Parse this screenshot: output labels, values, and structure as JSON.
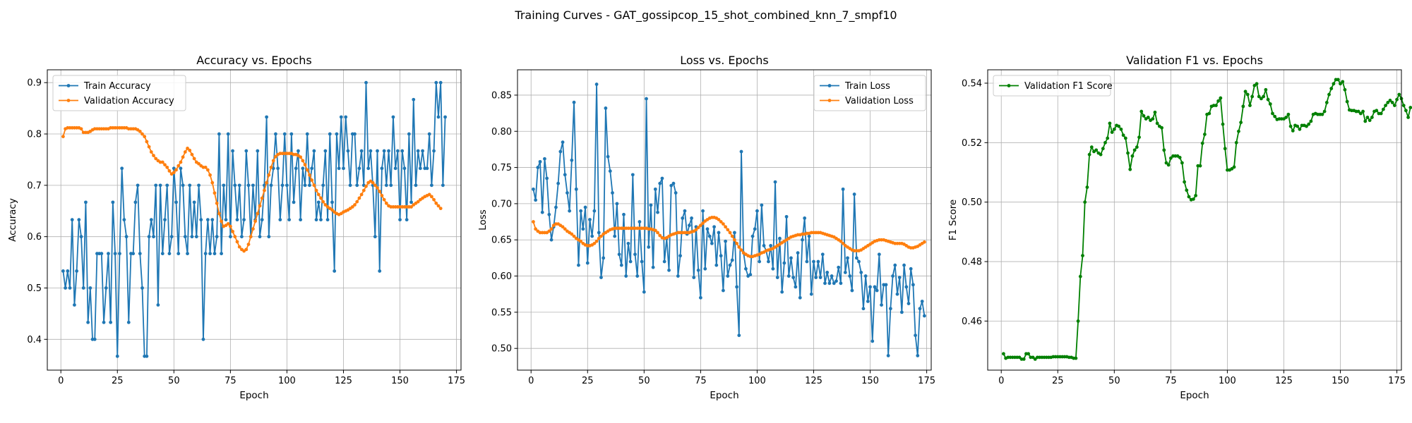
{
  "figure": {
    "suptitle": "Training Curves - GAT_gossipcop_15_shot_combined_knn_7_smpf10"
  },
  "colors": {
    "train": "#1f77b4",
    "validation": "#ff7f0e",
    "f1": "#008000",
    "grid": "#b0b0b0"
  },
  "chart_data": [
    {
      "type": "line",
      "title": "Accuracy vs. Epochs",
      "xlabel": "Epoch",
      "ylabel": "Accuracy",
      "xlim": [
        -6,
        177
      ],
      "ylim": [
        0.34,
        0.925
      ],
      "xticks": [
        0,
        25,
        50,
        75,
        100,
        125,
        150,
        175
      ],
      "yticks": [
        0.4,
        0.5,
        0.6,
        0.7,
        0.8,
        0.9
      ],
      "ytick_labels": [
        "0.4",
        "0.5",
        "0.6",
        "0.7",
        "0.8",
        "0.9"
      ],
      "grid": true,
      "legend_position": "upper-left",
      "series": [
        {
          "name": "Train Accuracy",
          "color": "#1f77b4",
          "x_start": 1,
          "values": [
            0.533,
            0.5,
            0.533,
            0.5,
            0.633,
            0.467,
            0.533,
            0.633,
            0.6,
            0.5,
            0.667,
            0.433,
            0.5,
            0.4,
            0.4,
            0.567,
            0.567,
            0.567,
            0.433,
            0.5,
            0.567,
            0.433,
            0.667,
            0.567,
            0.367,
            0.567,
            0.733,
            0.633,
            0.6,
            0.433,
            0.567,
            0.567,
            0.667,
            0.7,
            0.567,
            0.5,
            0.367,
            0.367,
            0.6,
            0.633,
            0.6,
            0.7,
            0.467,
            0.7,
            0.567,
            0.633,
            0.7,
            0.567,
            0.6,
            0.733,
            0.667,
            0.567,
            0.733,
            0.7,
            0.6,
            0.567,
            0.7,
            0.6,
            0.667,
            0.6,
            0.7,
            0.633,
            0.4,
            0.567,
            0.633,
            0.567,
            0.633,
            0.567,
            0.6,
            0.8,
            0.567,
            0.7,
            0.633,
            0.8,
            0.6,
            0.767,
            0.7,
            0.633,
            0.7,
            0.6,
            0.633,
            0.767,
            0.7,
            0.6,
            0.7,
            0.633,
            0.767,
            0.6,
            0.633,
            0.7,
            0.833,
            0.6,
            0.7,
            0.733,
            0.8,
            0.733,
            0.633,
            0.7,
            0.8,
            0.7,
            0.633,
            0.8,
            0.667,
            0.733,
            0.767,
            0.633,
            0.733,
            0.7,
            0.8,
            0.7,
            0.733,
            0.767,
            0.633,
            0.667,
            0.633,
            0.7,
            0.767,
            0.633,
            0.8,
            0.667,
            0.533,
            0.8,
            0.733,
            0.833,
            0.733,
            0.833,
            0.767,
            0.7,
            0.8,
            0.8,
            0.7,
            0.733,
            0.767,
            0.7,
            0.9,
            0.733,
            0.767,
            0.7,
            0.6,
            0.767,
            0.533,
            0.733,
            0.767,
            0.7,
            0.767,
            0.7,
            0.833,
            0.733,
            0.767,
            0.633,
            0.767,
            0.733,
            0.633,
            0.8,
            0.667,
            0.867,
            0.7,
            0.767,
            0.733,
            0.767,
            0.733,
            0.733,
            0.8,
            0.7,
            0.767,
            0.9,
            0.833,
            0.9,
            0.7,
            0.833
          ]
        },
        {
          "name": "Validation Accuracy",
          "color": "#ff7f0e",
          "x_start": 1,
          "values": [
            0.795,
            0.81,
            0.812,
            0.812,
            0.812,
            0.812,
            0.812,
            0.812,
            0.81,
            0.803,
            0.803,
            0.803,
            0.805,
            0.808,
            0.81,
            0.81,
            0.81,
            0.81,
            0.81,
            0.81,
            0.81,
            0.812,
            0.812,
            0.812,
            0.812,
            0.812,
            0.812,
            0.812,
            0.812,
            0.81,
            0.81,
            0.81,
            0.81,
            0.808,
            0.805,
            0.8,
            0.795,
            0.785,
            0.775,
            0.765,
            0.758,
            0.752,
            0.748,
            0.745,
            0.745,
            0.74,
            0.735,
            0.728,
            0.722,
            0.725,
            0.73,
            0.738,
            0.745,
            0.755,
            0.765,
            0.772,
            0.768,
            0.76,
            0.752,
            0.745,
            0.742,
            0.738,
            0.735,
            0.735,
            0.73,
            0.72,
            0.705,
            0.685,
            0.665,
            0.645,
            0.63,
            0.62,
            0.622,
            0.625,
            0.62,
            0.61,
            0.6,
            0.59,
            0.58,
            0.575,
            0.572,
            0.575,
            0.585,
            0.6,
            0.615,
            0.63,
            0.645,
            0.66,
            0.675,
            0.69,
            0.705,
            0.72,
            0.735,
            0.748,
            0.756,
            0.76,
            0.762,
            0.762,
            0.762,
            0.762,
            0.762,
            0.762,
            0.76,
            0.76,
            0.758,
            0.755,
            0.748,
            0.74,
            0.73,
            0.72,
            0.71,
            0.7,
            0.69,
            0.682,
            0.675,
            0.668,
            0.662,
            0.658,
            0.655,
            0.652,
            0.648,
            0.645,
            0.643,
            0.645,
            0.648,
            0.65,
            0.652,
            0.655,
            0.658,
            0.662,
            0.668,
            0.675,
            0.682,
            0.69,
            0.698,
            0.705,
            0.708,
            0.705,
            0.7,
            0.695,
            0.688,
            0.68,
            0.672,
            0.665,
            0.66,
            0.658,
            0.658,
            0.658,
            0.658,
            0.658,
            0.658,
            0.658,
            0.658,
            0.658,
            0.658,
            0.662,
            0.665,
            0.668,
            0.672,
            0.675,
            0.678,
            0.68,
            0.682,
            0.678,
            0.672,
            0.665,
            0.66,
            0.655
          ]
        }
      ]
    },
    {
      "type": "line",
      "title": "Loss vs. Epochs",
      "xlabel": "Epoch",
      "ylabel": "Loss",
      "xlim": [
        -6,
        177
      ],
      "ylim": [
        0.47,
        0.885
      ],
      "xticks": [
        0,
        25,
        50,
        75,
        100,
        125,
        150,
        175
      ],
      "yticks": [
        0.5,
        0.55,
        0.6,
        0.65,
        0.7,
        0.75,
        0.8,
        0.85
      ],
      "ytick_labels": [
        "0.50",
        "0.55",
        "0.60",
        "0.65",
        "0.70",
        "0.75",
        "0.80",
        "0.85"
      ],
      "grid": true,
      "legend_position": "upper-right",
      "series": [
        {
          "name": "Train Loss",
          "color": "#1f77b4",
          "x_start": 1,
          "values": [
            0.72,
            0.705,
            0.75,
            0.758,
            0.688,
            0.762,
            0.735,
            0.685,
            0.65,
            0.668,
            0.695,
            0.728,
            0.772,
            0.785,
            0.74,
            0.715,
            0.69,
            0.76,
            0.84,
            0.72,
            0.615,
            0.69,
            0.665,
            0.695,
            0.618,
            0.678,
            0.655,
            0.69,
            0.865,
            0.66,
            0.598,
            0.625,
            0.832,
            0.765,
            0.745,
            0.715,
            0.655,
            0.7,
            0.63,
            0.615,
            0.685,
            0.6,
            0.645,
            0.62,
            0.74,
            0.63,
            0.6,
            0.675,
            0.62,
            0.578,
            0.845,
            0.64,
            0.698,
            0.612,
            0.72,
            0.688,
            0.728,
            0.735,
            0.62,
            0.652,
            0.608,
            0.725,
            0.728,
            0.715,
            0.6,
            0.628,
            0.68,
            0.69,
            0.658,
            0.67,
            0.68,
            0.598,
            0.668,
            0.608,
            0.57,
            0.69,
            0.61,
            0.665,
            0.655,
            0.645,
            0.668,
            0.615,
            0.66,
            0.628,
            0.58,
            0.648,
            0.6,
            0.615,
            0.622,
            0.66,
            0.585,
            0.518,
            0.772,
            0.632,
            0.61,
            0.6,
            0.602,
            0.655,
            0.665,
            0.69,
            0.62,
            0.698,
            0.642,
            0.635,
            0.62,
            0.642,
            0.61,
            0.73,
            0.598,
            0.652,
            0.578,
            0.618,
            0.682,
            0.6,
            0.625,
            0.598,
            0.585,
            0.632,
            0.57,
            0.65,
            0.68,
            0.62,
            0.655,
            0.575,
            0.62,
            0.598,
            0.62,
            0.598,
            0.63,
            0.59,
            0.605,
            0.59,
            0.6,
            0.59,
            0.593,
            0.612,
            0.59,
            0.72,
            0.605,
            0.625,
            0.6,
            0.58,
            0.713,
            0.625,
            0.62,
            0.605,
            0.555,
            0.6,
            0.565,
            0.585,
            0.51,
            0.585,
            0.58,
            0.63,
            0.56,
            0.588,
            0.588,
            0.49,
            0.555,
            0.6,
            0.615,
            0.575,
            0.598,
            0.55,
            0.615,
            0.585,
            0.562,
            0.61,
            0.588,
            0.518,
            0.49,
            0.555,
            0.565,
            0.545
          ]
        },
        {
          "name": "Validation Loss",
          "color": "#ff7f0e",
          "x_start": 1,
          "values": [
            0.675,
            0.665,
            0.662,
            0.66,
            0.66,
            0.66,
            0.66,
            0.662,
            0.665,
            0.67,
            0.672,
            0.672,
            0.67,
            0.668,
            0.665,
            0.662,
            0.66,
            0.658,
            0.655,
            0.652,
            0.65,
            0.648,
            0.645,
            0.643,
            0.642,
            0.642,
            0.643,
            0.645,
            0.648,
            0.652,
            0.655,
            0.658,
            0.66,
            0.662,
            0.664,
            0.665,
            0.666,
            0.666,
            0.666,
            0.666,
            0.666,
            0.666,
            0.666,
            0.666,
            0.666,
            0.666,
            0.666,
            0.666,
            0.666,
            0.666,
            0.666,
            0.665,
            0.665,
            0.664,
            0.663,
            0.66,
            0.656,
            0.653,
            0.652,
            0.653,
            0.655,
            0.657,
            0.658,
            0.659,
            0.66,
            0.66,
            0.66,
            0.66,
            0.66,
            0.66,
            0.661,
            0.662,
            0.664,
            0.667,
            0.67,
            0.673,
            0.676,
            0.678,
            0.68,
            0.681,
            0.681,
            0.68,
            0.678,
            0.675,
            0.672,
            0.668,
            0.664,
            0.66,
            0.655,
            0.65,
            0.645,
            0.64,
            0.636,
            0.632,
            0.63,
            0.628,
            0.627,
            0.627,
            0.628,
            0.629,
            0.63,
            0.632,
            0.633,
            0.635,
            0.636,
            0.637,
            0.638,
            0.64,
            0.642,
            0.644,
            0.646,
            0.648,
            0.65,
            0.652,
            0.654,
            0.655,
            0.656,
            0.657,
            0.657,
            0.658,
            0.658,
            0.659,
            0.659,
            0.66,
            0.66,
            0.66,
            0.66,
            0.66,
            0.659,
            0.658,
            0.657,
            0.656,
            0.655,
            0.654,
            0.652,
            0.65,
            0.648,
            0.645,
            0.642,
            0.64,
            0.638,
            0.636,
            0.635,
            0.635,
            0.635,
            0.636,
            0.638,
            0.64,
            0.642,
            0.644,
            0.646,
            0.648,
            0.649,
            0.65,
            0.65,
            0.65,
            0.649,
            0.648,
            0.647,
            0.646,
            0.645,
            0.645,
            0.645,
            0.645,
            0.644,
            0.642,
            0.64,
            0.639,
            0.639,
            0.64,
            0.641,
            0.643,
            0.645,
            0.647
          ]
        }
      ]
    },
    {
      "type": "line",
      "title": "Validation F1 vs. Epochs",
      "xlabel": "Epoch",
      "ylabel": "F1 Score",
      "xlim": [
        -6,
        177
      ],
      "ylim": [
        0.4435,
        0.5445
      ],
      "xticks": [
        0,
        25,
        50,
        75,
        100,
        125,
        150,
        175
      ],
      "yticks": [
        0.46,
        0.48,
        0.5,
        0.52,
        0.54
      ],
      "ytick_labels": [
        "0.46",
        "0.48",
        "0.50",
        "0.52",
        "0.54"
      ],
      "grid": true,
      "legend_position": "upper-left",
      "series": [
        {
          "name": "Validation F1 Score",
          "color": "#008000",
          "x_start": 1,
          "values": [
            0.449,
            0.4475,
            0.4478,
            0.4478,
            0.4478,
            0.4478,
            0.4478,
            0.4478,
            0.4472,
            0.4472,
            0.449,
            0.449,
            0.4478,
            0.4478,
            0.4472,
            0.4478,
            0.4478,
            0.4478,
            0.4478,
            0.4478,
            0.4478,
            0.4478,
            0.448,
            0.448,
            0.448,
            0.448,
            0.448,
            0.448,
            0.448,
            0.4478,
            0.4478,
            0.4475,
            0.4475,
            0.46,
            0.475,
            0.482,
            0.5,
            0.505,
            0.516,
            0.5185,
            0.517,
            0.5175,
            0.5165,
            0.516,
            0.518,
            0.52,
            0.5215,
            0.5265,
            0.5235,
            0.5245,
            0.5258,
            0.5255,
            0.5245,
            0.5225,
            0.5215,
            0.5165,
            0.511,
            0.5155,
            0.5175,
            0.5185,
            0.5218,
            0.5305,
            0.529,
            0.528,
            0.5285,
            0.5275,
            0.528,
            0.5302,
            0.5265,
            0.5255,
            0.525,
            0.5175,
            0.5132,
            0.5125,
            0.5148,
            0.5155,
            0.5155,
            0.5155,
            0.515,
            0.5132,
            0.5068,
            0.504,
            0.5018,
            0.5008,
            0.501,
            0.5022,
            0.5122,
            0.5122,
            0.5198,
            0.5228,
            0.5295,
            0.5298,
            0.5322,
            0.5325,
            0.5325,
            0.534,
            0.535,
            0.5262,
            0.518,
            0.5108,
            0.5108,
            0.5112,
            0.5118,
            0.52,
            0.5238,
            0.5268,
            0.5322,
            0.5372,
            0.5362,
            0.5325,
            0.5355,
            0.5392,
            0.5398,
            0.5355,
            0.5348,
            0.5355,
            0.5378,
            0.5345,
            0.533,
            0.5298,
            0.5288,
            0.5278,
            0.528,
            0.528,
            0.528,
            0.5285,
            0.5295,
            0.5255,
            0.524,
            0.5258,
            0.5255,
            0.5245,
            0.5258,
            0.5258,
            0.5255,
            0.5262,
            0.5272,
            0.5295,
            0.5298,
            0.5295,
            0.5295,
            0.5295,
            0.5305,
            0.5335,
            0.5362,
            0.5382,
            0.5398,
            0.5412,
            0.5412,
            0.5398,
            0.5405,
            0.5378,
            0.5338,
            0.531,
            0.5308,
            0.5308,
            0.5305,
            0.5305,
            0.5298,
            0.5305,
            0.5272,
            0.5285,
            0.5275,
            0.5285,
            0.5305,
            0.5308,
            0.5298,
            0.5298,
            0.5312,
            0.5325,
            0.5335,
            0.5342,
            0.5335,
            0.5325,
            0.5345,
            0.5362,
            0.5348,
            0.5325,
            0.5308,
            0.5285,
            0.5318
          ]
        }
      ]
    }
  ]
}
